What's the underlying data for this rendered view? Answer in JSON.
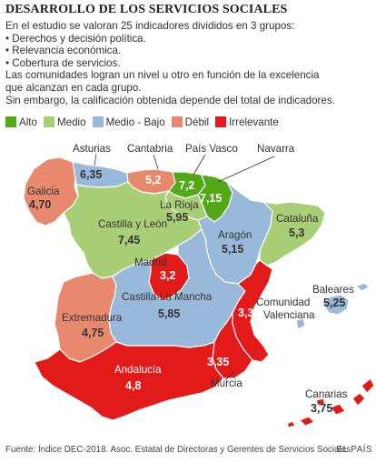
{
  "title": "DESARROLLO DE LOS SERVICIOS SOCIALES",
  "intro": {
    "line1": "En el estudio se valoran 25 indicadores divididos en 3 grupos:",
    "bullet1": "• Derechos y decisión política.",
    "bullet2": "• Relevancia económica.",
    "bullet3": "• Cobertura de servicios.",
    "line2": "Las comunidades logran un nivel u otro en función de la excelencia",
    "line3": "que alcanzan en cada grupo.",
    "line4": "Sin embargo, la calificación obtenida depende del total de indicadores."
  },
  "legend": [
    {
      "label": "Alto",
      "color": "#52a817"
    },
    {
      "label": "Medio",
      "color": "#a9cf76"
    },
    {
      "label": "Medio - Bajo",
      "color": "#98b9d9"
    },
    {
      "label": "Débil",
      "color": "#e8896d"
    },
    {
      "label": "Irrelevante",
      "color": "#e21a1a"
    }
  ],
  "regions": {
    "galicia": {
      "name": "Galicia",
      "value": "4,70",
      "level": "Débil"
    },
    "asturias": {
      "name": "Asturias",
      "value": "6,35",
      "level": "Medio - Bajo"
    },
    "cantabria": {
      "name": "Cantabria",
      "value": "5,2",
      "level": "Débil"
    },
    "pais_vasco": {
      "name": "País Vasco",
      "value": "7,2",
      "level": "Alto"
    },
    "navarra": {
      "name": "Navarra",
      "value": "7,15",
      "level": "Alto"
    },
    "la_rioja": {
      "name": "La Rioja",
      "value": "5,95",
      "level": "Medio"
    },
    "castilla_leon": {
      "name": "Castilla y León",
      "value": "7,45",
      "level": "Medio"
    },
    "aragon": {
      "name": "Aragón",
      "value": "5,15",
      "level": "Medio - Bajo"
    },
    "cataluna": {
      "name": "Cataluña",
      "value": "5,3",
      "level": "Medio"
    },
    "madrid": {
      "name": "Madrid",
      "value": "3,2",
      "level": "Irrelevante"
    },
    "extremadura": {
      "name": "Extremadura",
      "value": "4,75",
      "level": "Débil"
    },
    "castilla_la_mancha": {
      "name": "Castilla-La Mancha",
      "value": "5,85",
      "level": "Medio - Bajo"
    },
    "valenciana": {
      "name": "Comunidad",
      "name2": "Valenciana",
      "value": "3,3",
      "level": "Irrelevante"
    },
    "baleares": {
      "name": "Baleares",
      "value": "5,25",
      "level": "Medio - Bajo"
    },
    "andalucia": {
      "name": "Andalucía",
      "value": "4,8",
      "level": "Irrelevante"
    },
    "murcia": {
      "name": "Murcia",
      "value": "3,35",
      "level": "Irrelevante"
    },
    "canarias": {
      "name": "Canarias",
      "value": "3,75",
      "level": "Irrelevante"
    }
  },
  "colors": {
    "alto": "#52a817",
    "medio": "#a9cf76",
    "medio_bajo": "#98b9d9",
    "debil": "#e8896d",
    "irrelevante": "#e21a1a",
    "sea": "#ffffff"
  },
  "footer": "Fuente: Índice DEC-2018. Asoc. Estatal de Directoras y Gerentes de Servicios Sociales.",
  "brand": "EL PAÍS"
}
